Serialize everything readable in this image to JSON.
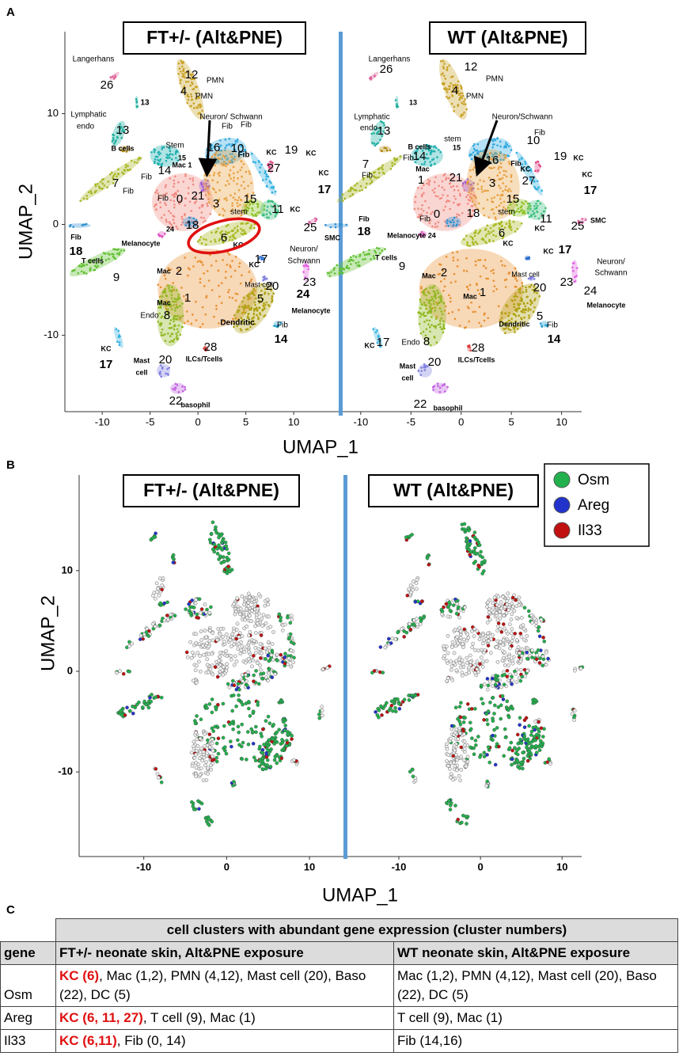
{
  "panel_a": {
    "label": "A",
    "xlabel": "UMAP_1",
    "ylabel": "UMAP_2",
    "ylim": [
      -16.9,
      17.4
    ],
    "yticks": [
      -10,
      0,
      10
    ],
    "left": {
      "title": "FT+/- (Alt&PNE)",
      "xlim": [
        -13.9,
        14.7
      ],
      "xticks": [
        -10,
        -5,
        0,
        5,
        10
      ],
      "labels": [
        "Langerhans",
        "26",
        "13",
        "Lymphatic",
        "endo",
        "13",
        "B cells",
        "12",
        "PMN",
        "4",
        "PMN",
        "Neuron/ Schwann",
        "Fib",
        "Fib",
        "Stem",
        "16",
        "10",
        "15",
        "Mac 1",
        "14",
        "Fib",
        "7",
        "Fib",
        "Fib",
        "KC",
        "19",
        "KC",
        "27",
        "KC",
        "17",
        "Fib",
        "0",
        "21",
        "3",
        "15",
        "stem",
        "11",
        "KC",
        "Fib",
        "18",
        "24",
        "18",
        "Melanocyte",
        "6",
        "KC",
        "25",
        "SMC",
        "Neuron/",
        "Schwann",
        "17",
        "KC",
        "T cells",
        "9",
        "Mac",
        "2",
        "Mast cell",
        "20",
        "23",
        "Mac",
        "1",
        "5",
        "24",
        "Melanocyte",
        "Endo",
        "8",
        "Dendritic",
        "Fib",
        "14",
        "KC",
        "17",
        "Mast",
        "cell",
        "20",
        "28",
        "ILCs/Tcells",
        "22",
        "basophil"
      ]
    },
    "right": {
      "title": "WT (Alt&PNE)",
      "xlim": [
        -11.8,
        12
      ],
      "xticks": [
        -10,
        -5,
        0,
        5,
        10
      ],
      "labels": [
        "Langerhans",
        "26",
        "12",
        "PMN",
        "4",
        "PMN",
        "13",
        "Lymphatic",
        "endo",
        "13",
        "Neuron/Schwann",
        "Fib",
        "B cells",
        "stem",
        "10",
        "14",
        "15",
        "Fib",
        "16",
        "Mac",
        "Fib",
        "19",
        "KC",
        "7",
        "Fib",
        "1",
        "21",
        "3",
        "27",
        "KC",
        "KC",
        "17",
        "15",
        "stem",
        "18",
        "0",
        "Fib",
        "11",
        "KC",
        "25",
        "SMC",
        "Fib",
        "18",
        "Melanocyte 24",
        "6",
        "KC",
        "KC",
        "17",
        "Neuron/",
        "Schwann",
        "T cells",
        "9",
        "Mast cell",
        "20",
        "23",
        "24",
        "Melanocyte",
        "Mac",
        "2",
        "Mac",
        "1",
        "5",
        "Dendritic",
        "Fib",
        "14",
        "KC",
        "17",
        "Endo",
        "8",
        "28",
        "ILCs/Tcells",
        "Mast",
        "cell",
        "20",
        "22",
        "basophil"
      ]
    }
  },
  "panel_b": {
    "label": "B",
    "xlabel": "UMAP_1",
    "ylabel": "UMAP_2",
    "ylim": [
      -18.4,
      19.5
    ],
    "yticks": [
      -10,
      0,
      10
    ],
    "left": {
      "title": "FT+/- (Alt&PNE)",
      "xlim": [
        -17.8,
        14.1
      ],
      "xticks": [
        -10,
        0,
        10
      ]
    },
    "right": {
      "title": "WT (Alt&PNE)",
      "xlim": [
        -16.3,
        12.4
      ],
      "xticks": [
        -10,
        0,
        10
      ]
    },
    "legend": [
      {
        "name": "Osm",
        "color": "#22b14c"
      },
      {
        "name": "Areg",
        "color": "#2233cc"
      },
      {
        "name": "Il33",
        "color": "#c01010"
      }
    ]
  },
  "panel_c": {
    "label": "C",
    "table": {
      "header_span": "cell clusters with abundant gene expression (cluster numbers)",
      "columns": [
        "gene",
        "FT+/- neonate skin, Alt&PNE exposure",
        "WT neonate skin, Alt&PNE exposure"
      ],
      "rows": [
        {
          "gene": "Osm",
          "ft": {
            "highlight": "KC (6)",
            "rest": ", Mac (1,2), PMN (4,12), Mast cell (20), Baso (22), DC (5)"
          },
          "wt": "Mac (1,2), PMN (4,12), Mast cell (20), Baso (22), DC (5)"
        },
        {
          "gene": "Areg",
          "ft": {
            "highlight": "KC (6, 11, 27)",
            "rest": ", T cell (9), Mac (1)"
          },
          "wt": "T cell (9), Mac (1)"
        },
        {
          "gene": "Il33",
          "ft": {
            "highlight": "KC (6,11)",
            "rest": ", Fib (0, 14)"
          },
          "wt": "Fib (14,16)"
        }
      ]
    }
  }
}
